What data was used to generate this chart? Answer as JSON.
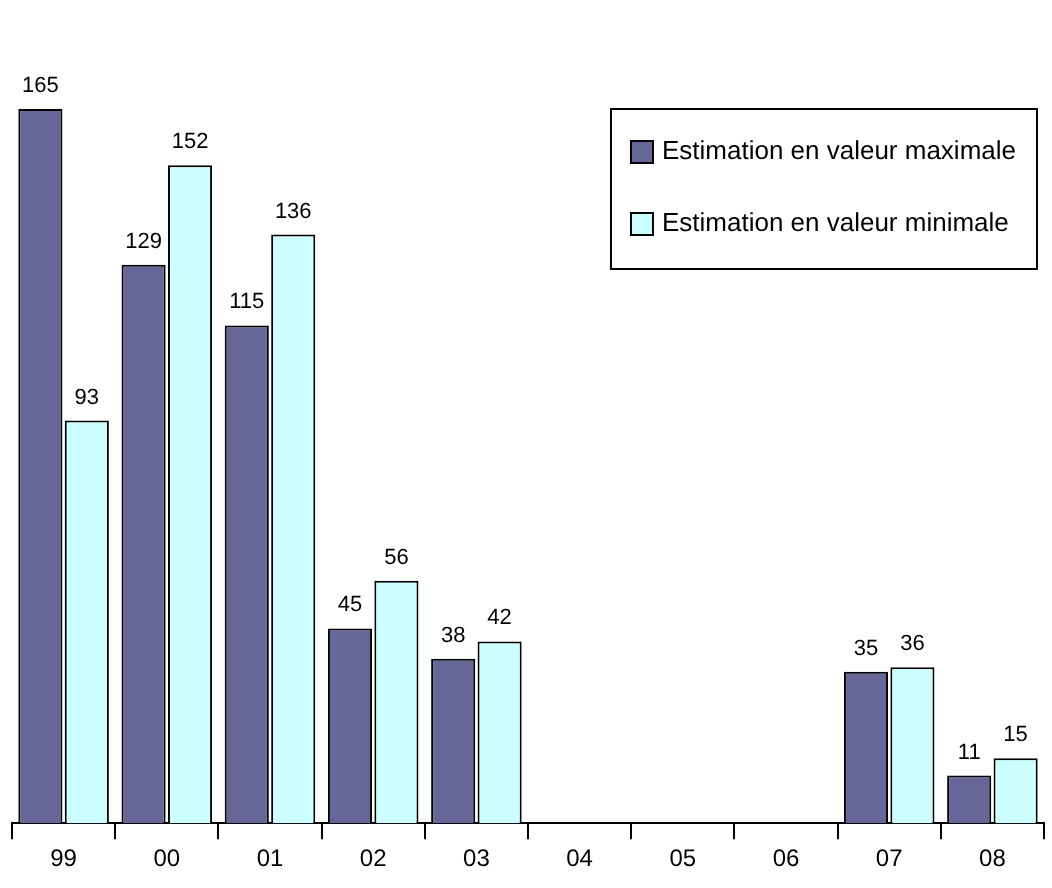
{
  "chart_data": {
    "type": "bar",
    "categories": [
      "99",
      "00",
      "01",
      "02",
      "03",
      "04",
      "05",
      "06",
      "07",
      "08"
    ],
    "series": [
      {
        "name": "Estimation en valeur maximale",
        "color": "#666699",
        "values": [
          165,
          129,
          115,
          45,
          38,
          null,
          null,
          null,
          35,
          11
        ]
      },
      {
        "name": "Estimation en valeur minimale",
        "color": "#ccffff",
        "values": [
          93,
          152,
          136,
          56,
          42,
          null,
          null,
          null,
          36,
          15
        ]
      }
    ],
    "data_labels": true,
    "legend": "top right",
    "grid": false,
    "tick_labels": "x"
  }
}
